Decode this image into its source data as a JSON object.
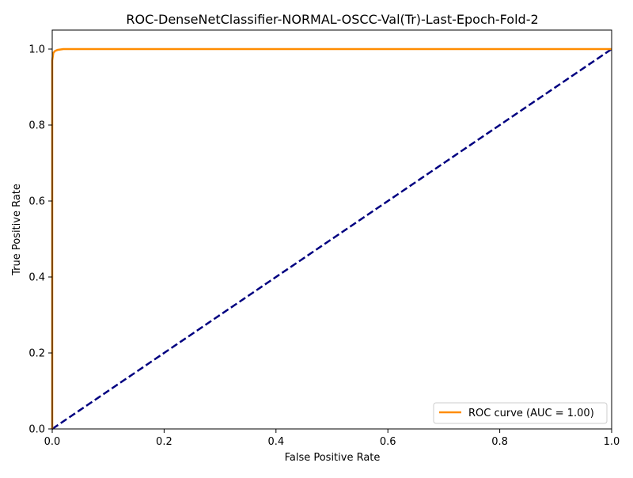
{
  "chart_data": {
    "type": "line",
    "title": "ROC-DenseNetClassifier-NORMAL-OSCC-Val(Tr)-Last-Epoch-Fold-2",
    "xlabel": "False Positive Rate",
    "ylabel": "True Positive Rate",
    "xlim": [
      0.0,
      1.0
    ],
    "ylim": [
      0.0,
      1.05
    ],
    "xticks": [
      "0.0",
      "0.2",
      "0.4",
      "0.6",
      "0.8",
      "1.0"
    ],
    "yticks": [
      "0.0",
      "0.2",
      "0.4",
      "0.6",
      "0.8",
      "1.0"
    ],
    "grid": false,
    "legend_position": "lower-right",
    "series": [
      {
        "name": "ROC curve (AUC = 1.00)",
        "color": "#ff8c00",
        "style": "solid",
        "x": [
          0.0,
          0.0,
          0.0,
          0.001,
          0.002,
          0.005,
          0.01,
          0.02,
          0.05,
          0.2,
          0.5,
          1.0
        ],
        "y": [
          0.0,
          0.6,
          0.97,
          0.98,
          0.99,
          0.995,
          0.998,
          1.0,
          1.0,
          1.0,
          1.0,
          1.0
        ]
      },
      {
        "color": "#000080",
        "style": "dashed",
        "x": [
          0.0,
          1.0
        ],
        "y": [
          0.0,
          1.0
        ]
      }
    ]
  }
}
